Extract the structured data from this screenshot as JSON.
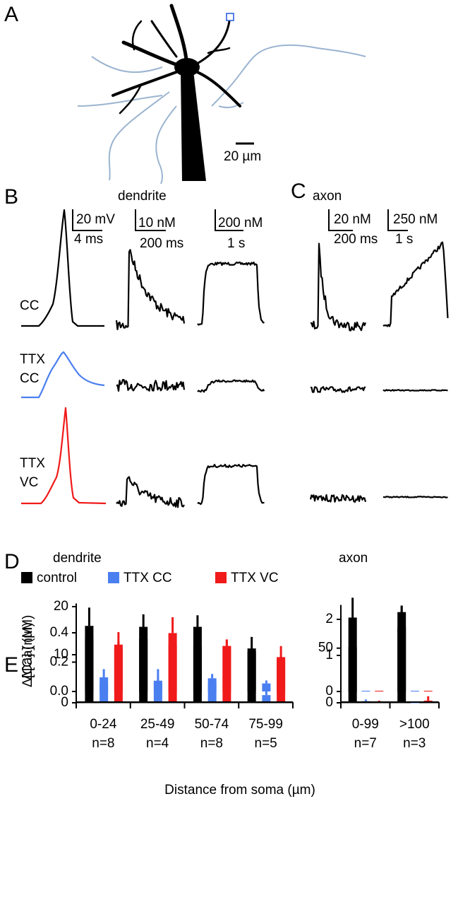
{
  "panel_labels": [
    "A",
    "B",
    "C",
    "D",
    "E"
  ],
  "panel_a": {
    "scale_bar": "20 µm"
  },
  "panel_b": {
    "title": "dendrite",
    "scale_bars": [
      "20 mV",
      "4 ms",
      "10 nM",
      "200 ms",
      "200 nM",
      "1 s"
    ],
    "row_labels": [
      [
        "CC"
      ],
      [
        "TTX",
        "CC"
      ],
      [
        "TTX",
        "VC"
      ]
    ]
  },
  "panel_c": {
    "title": "axon",
    "scale_bars": [
      "20 nM",
      "200 ms",
      "250 nM",
      "1 s"
    ]
  },
  "chart_data": [
    {
      "type": "bar",
      "title": "dendrite",
      "ylabel": "Δ[Ca] (nM)",
      "legend": "top",
      "categories": [
        null,
        null,
        null,
        null
      ],
      "series": [
        {
          "name": "control",
          "color": "#000000",
          "values": [
            16,
            15.8,
            15.8,
            11.3
          ],
          "errors": [
            3.8,
            2.6,
            2.4,
            2.4
          ]
        },
        {
          "name": "TTX CC",
          "color": "#4a7ff0",
          "values": [
            5.3,
            4.6,
            5.1,
            1.6
          ],
          "errors": [
            1.7,
            2.4,
            0.9,
            1.7
          ]
        },
        {
          "name": "TTX VC",
          "color": "#f01a1a",
          "values": [
            12.1,
            14.5,
            11.8,
            9.5
          ],
          "errors": [
            2.6,
            3.3,
            1.3,
            2.3
          ]
        }
      ],
      "ylim": [
        0,
        20
      ],
      "yticks": [
        0,
        10,
        20
      ]
    },
    {
      "type": "bar",
      "title": "axon",
      "categories": [
        null,
        null
      ],
      "series": [
        {
          "color": "#000000",
          "values": [
            51,
            83
          ],
          "errors": [
            7,
            6
          ]
        },
        {
          "color": "#4a7ff0",
          "values": [
            1.5,
            0.3
          ],
          "errors": [
            1.5,
            0.3
          ]
        },
        {
          "color": "#f01a1a",
          "values": [
            1,
            2
          ],
          "errors": [
            1,
            4
          ]
        }
      ],
      "ylim": [
        0,
        88
      ],
      "yticks": [
        0,
        50
      ]
    },
    {
      "type": "bar",
      "ylabel": "Δ[Ca] (µM)",
      "xlabel": "Distance from soma (µm)",
      "categories": [
        "0-24",
        "25-49",
        "50-74",
        "75-99"
      ],
      "n_labels": [
        "n=8",
        "n=4",
        "n=8",
        "n=5"
      ],
      "series": [
        {
          "color": "#000000",
          "values": [
            0.36,
            0.36,
            0.31,
            0.27
          ],
          "errors": [
            0.05,
            0.025,
            0.045,
            0.025
          ]
        },
        {
          "color": "#4a7ff0",
          "values": [
            0.045,
            0.06,
            0.06,
            0.055
          ],
          "errors": [
            0.01,
            0.025,
            0.015,
            0.02
          ]
        },
        {
          "color": "#f01a1a",
          "values": [
            0.3,
            0.315,
            0.31,
            0.22
          ],
          "errors": [
            0.04,
            0.035,
            0.045,
            0.02
          ]
        }
      ],
      "ylim": [
        0,
        0.6
      ],
      "yticks": [
        {
          "value": 0,
          "label": "0.0"
        },
        0.2,
        0.4
      ]
    },
    {
      "type": "bar",
      "categories": [
        "0-99",
        ">100"
      ],
      "n_labels": [
        "n=7",
        "n=3"
      ],
      "series": [
        {
          "color": "#000000",
          "values": [
            2.05,
            1.78
          ],
          "errors": [
            0.55,
            0.57
          ]
        },
        {
          "color": "#4a7ff0",
          "values": [
            0.02,
            0.02
          ],
          "errors": [
            0,
            0
          ]
        },
        {
          "color": "#f01a1a",
          "values": [
            0.02,
            0.02
          ],
          "errors": [
            0,
            0
          ]
        }
      ],
      "ylim": [
        0,
        2.4
      ],
      "yticks": [
        0,
        1,
        2
      ]
    }
  ]
}
